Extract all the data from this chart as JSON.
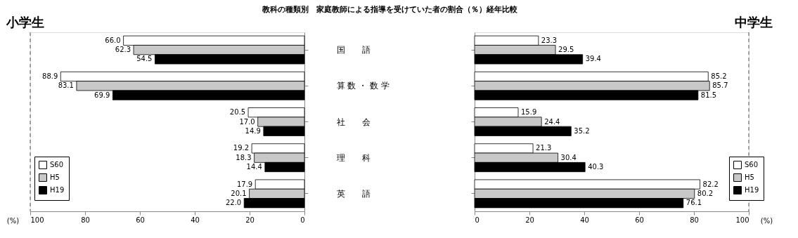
{
  "chart_data": [
    {
      "type": "bar",
      "orientation": "horizontal",
      "title": "小学生",
      "xlabel": "(%)",
      "annotations": [
        "教科の種類別　家庭教師による指導を受けていた者の割合（％）経年比較"
      ],
      "categories": [
        "国　　語",
        "算 数 ・ 数 学",
        "社　　会",
        "理　　科",
        "英　　語"
      ],
      "series": [
        {
          "name": "S60",
          "color": "#ffffff",
          "values": [
            66.0,
            88.9,
            20.5,
            19.2,
            17.9
          ],
          "value_labels": [
            "66.0",
            "88.9",
            "20.5",
            "19.2",
            "17.9"
          ]
        },
        {
          "name": "H5",
          "color": "#c8c8c8",
          "values": [
            62.3,
            83.1,
            17.0,
            18.3,
            20.1
          ],
          "value_labels": [
            "62.3",
            "83.1",
            "17.0",
            "18.3",
            "20.1"
          ]
        },
        {
          "name": "H19",
          "color": "#000000",
          "values": [
            54.5,
            69.9,
            14.9,
            14.4,
            22.0
          ],
          "value_labels": [
            "54.5",
            "69.9",
            "14.9",
            "14.4",
            "22.0"
          ]
        }
      ],
      "xlim": [
        100,
        0
      ],
      "xticks": [
        100,
        80,
        60,
        40,
        20,
        0
      ],
      "grid": false,
      "legend": "bottom left",
      "ref_lines": [
        {
          "axis": "x",
          "value": 100,
          "line_style": "dashed",
          "color": "#555555"
        }
      ]
    },
    {
      "type": "bar",
      "orientation": "horizontal",
      "title": "中学生",
      "xlabel": "(%)",
      "series": [
        {
          "name": "S60",
          "color": "#ffffff",
          "values": [
            23.3,
            85.2,
            15.9,
            21.3,
            82.2
          ],
          "value_labels": [
            "23.3",
            "85.2",
            "15.9",
            "21.3",
            "82.2"
          ]
        },
        {
          "name": "H5",
          "color": "#c8c8c8",
          "values": [
            29.5,
            85.7,
            24.4,
            30.4,
            80.2
          ],
          "value_labels": [
            "29.5",
            "85.7",
            "24.4",
            "30.4",
            "80.2"
          ]
        },
        {
          "name": "H19",
          "color": "#000000",
          "values": [
            39.4,
            81.5,
            35.2,
            40.3,
            76.1
          ],
          "value_labels": [
            "39.4",
            "81.5",
            "35.2",
            "40.3",
            "76.1"
          ]
        }
      ],
      "xlim": [
        0,
        100
      ],
      "xticks": [
        0,
        20,
        40,
        60,
        80,
        100
      ],
      "grid": false,
      "legend": "bottom right",
      "tick_labels": "x",
      "ref_lines": [
        {
          "axis": "x",
          "value": 100,
          "line_style": "dashed",
          "color": "#555555"
        }
      ]
    }
  ]
}
